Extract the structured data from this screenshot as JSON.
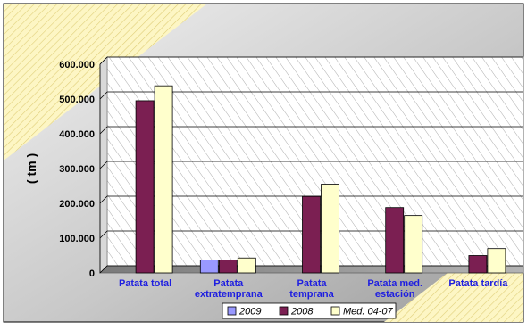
{
  "chart_data": {
    "type": "bar",
    "ylabel": "( tm )",
    "ylim": [
      0,
      600000
    ],
    "yticks": [
      "0",
      "100.000",
      "200.000",
      "300.000",
      "400.000",
      "500.000",
      "600.000"
    ],
    "categories": [
      [
        "Patata total"
      ],
      [
        "Patata",
        "extratemprana"
      ],
      [
        "Patata",
        "temprana"
      ],
      [
        "Patata med.",
        "estación"
      ],
      [
        "Patata tardía"
      ]
    ],
    "series": [
      {
        "name": "2009",
        "color": "#9999ff",
        "values": [
          null,
          37000,
          null,
          null,
          null
        ]
      },
      {
        "name": "2008",
        "color": "#7b1f52",
        "values": [
          495000,
          37000,
          220000,
          188000,
          50000
        ]
      },
      {
        "name": "Med. 04-07",
        "color": "#ffffcc",
        "values": [
          538000,
          43000,
          255000,
          165000,
          70000
        ]
      }
    ],
    "grid": true,
    "legend_position": "bottom"
  }
}
